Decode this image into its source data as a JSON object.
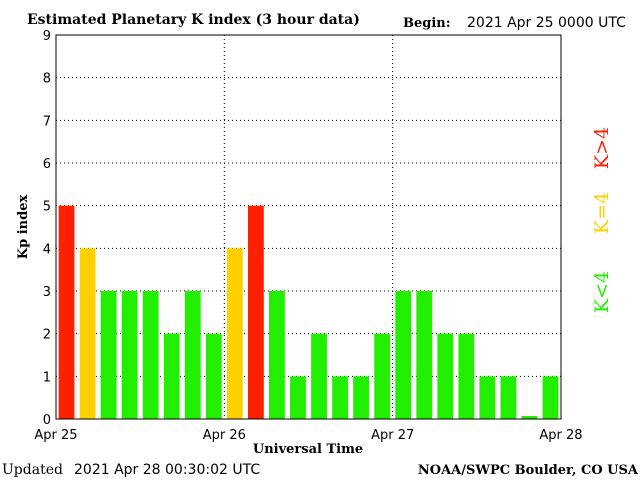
{
  "header": {
    "title": "Estimated Planetary K index (3 hour data)",
    "begin_label": "Begin:",
    "begin_value": "2021 Apr 25 0000 UTC"
  },
  "footer": {
    "updated_label": "Updated",
    "updated_value": "2021 Apr 28 00:30:02 UTC",
    "source": "NOAA/SWPC Boulder, CO USA"
  },
  "legend": [
    {
      "label": "K>4",
      "color": "#ff2000"
    },
    {
      "label": "K=4",
      "color": "#ffd000"
    },
    {
      "label": "K<4",
      "color": "#22ee00"
    }
  ],
  "chart_data": {
    "type": "bar",
    "title": "Estimated Planetary K index (3 hour data)",
    "xlabel": "Universal Time",
    "ylabel": "Kp index",
    "ylim": [
      0,
      9
    ],
    "yticks": [
      0,
      1,
      2,
      3,
      4,
      5,
      6,
      7,
      8,
      9
    ],
    "xticks": [
      "Apr 25",
      "Apr 26",
      "Apr 27",
      "Apr 28"
    ],
    "grid": true,
    "values": [
      5,
      4,
      3,
      3,
      3,
      2,
      3,
      2,
      4,
      5,
      3,
      1,
      2,
      1,
      1,
      2,
      3,
      3,
      2,
      2,
      1,
      1,
      0.07,
      1
    ],
    "colors": {
      "above": "#ff2000",
      "equal": "#ffd000",
      "below": "#22ee00"
    }
  }
}
